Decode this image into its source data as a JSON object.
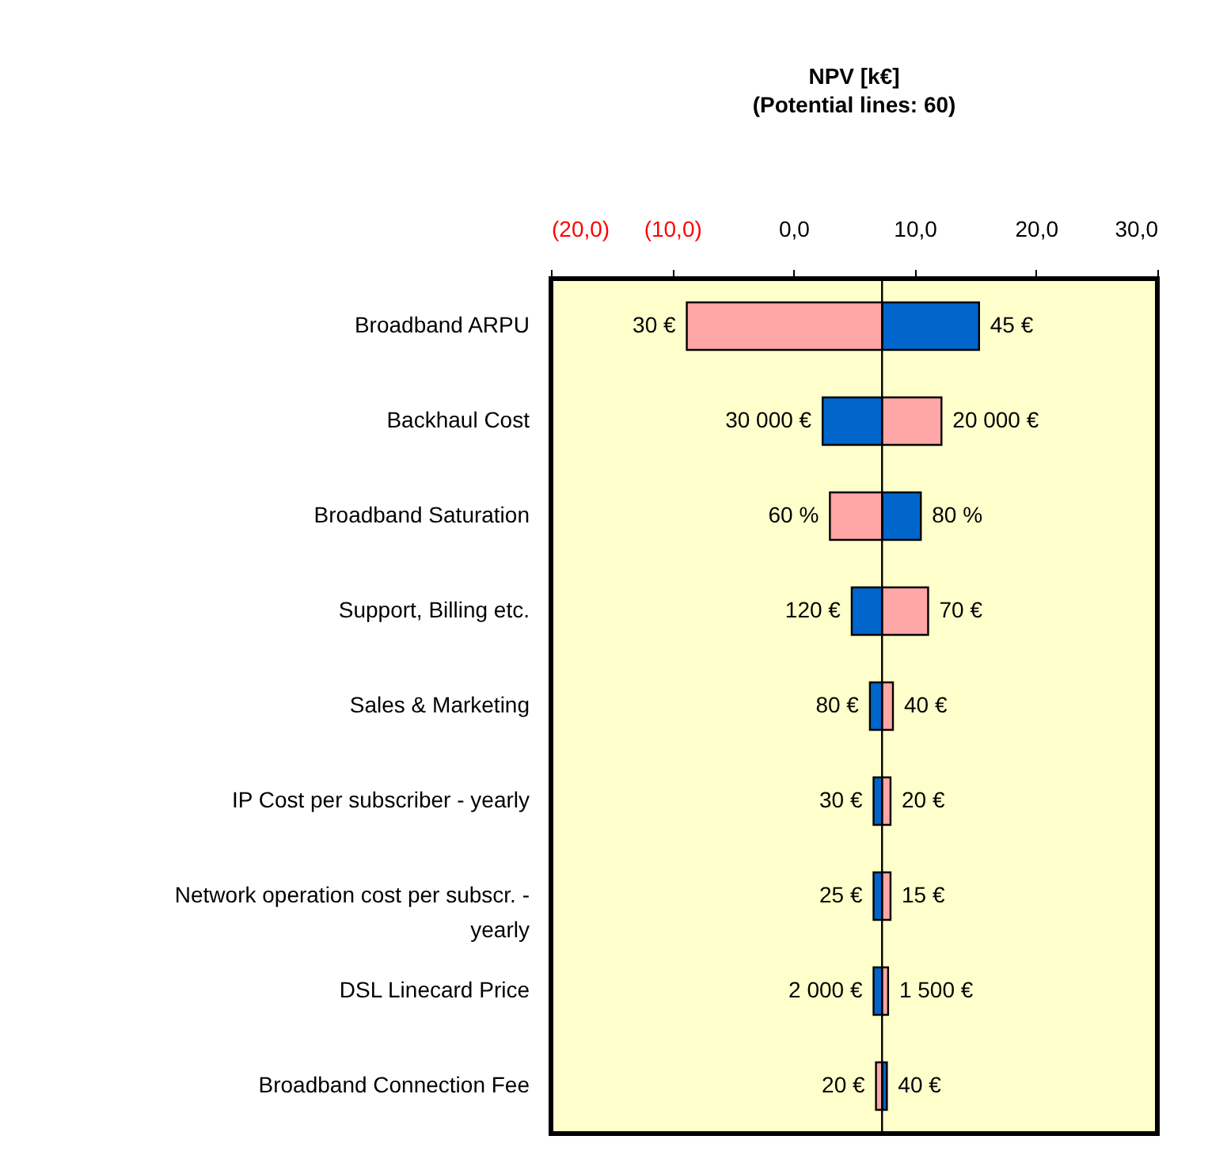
{
  "chart_data": {
    "type": "bar",
    "orientation": "horizontal",
    "title": "NPV [k€]",
    "subtitle": "(Potential lines: 60)",
    "categories": [
      "Broadband ARPU",
      "Backhaul Cost",
      "Broadband Saturation",
      "Support, Billing etc.",
      "Sales & Marketing",
      "IP Cost per subscriber - yearly",
      "Network operation cost per subscr. - yearly",
      "DSL Linecard Price",
      "Broadband Connection Fee"
    ],
    "series": [
      {
        "color": "#0066cc",
        "base": [
          7.3,
          7.3,
          7.3,
          7.3,
          7.3,
          7.3,
          7.3,
          7.3,
          7.3
        ],
        "values": [
          8.0,
          -4.9,
          3.2,
          -2.5,
          -1.0,
          -0.7,
          -0.7,
          -0.7,
          0.4
        ]
      },
      {
        "color": "#ffa6a6",
        "base": [
          7.3,
          7.3,
          7.3,
          7.3,
          7.3,
          7.3,
          7.3,
          7.3,
          7.3
        ],
        "values": [
          -16.1,
          4.9,
          -4.3,
          3.8,
          0.9,
          0.7,
          0.7,
          0.5,
          -0.5
        ]
      }
    ],
    "annotations": [
      {
        "text": "45 €",
        "x": 15.3,
        "y": "Broadband ARPU"
      },
      {
        "text": "30 €",
        "x": -8.8,
        "y": "Broadband ARPU"
      },
      {
        "text": "30 000 €",
        "x": 2.4,
        "y": "Backhaul Cost"
      },
      {
        "text": "20 000 €",
        "x": 12.2,
        "y": "Backhaul Cost"
      },
      {
        "text": "80 %",
        "x": 10.5,
        "y": "Broadband Saturation"
      },
      {
        "text": "60 %",
        "x": 3.0,
        "y": "Broadband Saturation"
      },
      {
        "text": "120 €",
        "x": 4.8,
        "y": "Support, Billing etc."
      },
      {
        "text": "70 €",
        "x": 11.1,
        "y": "Support, Billing etc."
      },
      {
        "text": "80 €",
        "x": 6.3,
        "y": "Sales & Marketing"
      },
      {
        "text": "40 €",
        "x": 8.2,
        "y": "Sales & Marketing"
      },
      {
        "text": "30 €",
        "x": 6.6,
        "y": "IP Cost per subscriber - yearly"
      },
      {
        "text": "20 €",
        "x": 8.0,
        "y": "IP Cost per subscriber - yearly"
      },
      {
        "text": "25 €",
        "x": 6.6,
        "y": "Network operation cost per subscr. - yearly"
      },
      {
        "text": "15 €",
        "x": 8.0,
        "y": "Network operation cost per subscr. - yearly"
      },
      {
        "text": "2 000 €",
        "x": 6.6,
        "y": "DSL Linecard Price"
      },
      {
        "text": "1 500 €",
        "x": 7.8,
        "y": "DSL Linecard Price"
      },
      {
        "text": "20 €",
        "x": 6.8,
        "y": "Broadband Connection Fee"
      },
      {
        "text": "40 €",
        "x": 7.7,
        "y": "Broadband Connection Fee"
      }
    ],
    "xlim": [
      -20,
      30
    ],
    "xticks": [
      {
        "value": -20,
        "label": "(20,0)"
      },
      {
        "value": -10,
        "label": "(10,0)"
      },
      {
        "value": 0,
        "label": "0,0"
      },
      {
        "value": 10,
        "label": "10,0"
      },
      {
        "value": 20,
        "label": "20,0"
      },
      {
        "value": 30,
        "label": "30,0"
      }
    ],
    "ref_lines": [
      {
        "axis": "x",
        "value": 7.3,
        "color": "#000000"
      }
    ],
    "grid": false
  }
}
